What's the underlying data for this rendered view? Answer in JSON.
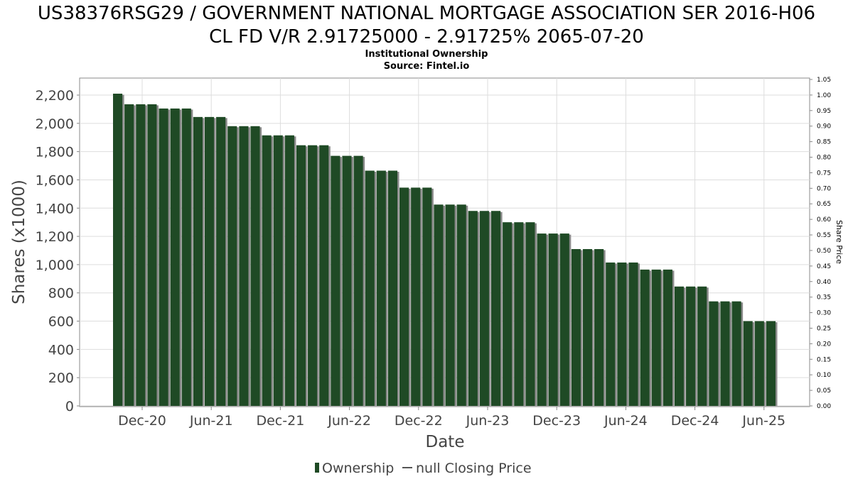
{
  "chart_data": {
    "type": "bar",
    "title_line1": "US38376RSG29 / GOVERNMENT NATIONAL MORTGAGE ASSOCIATION SER 2016-H06",
    "title_line2": "CL FD V/R 2.91725000 - 2.91725% 2065-07-20",
    "subtitle_line1": "Institutional Ownership",
    "subtitle_line2": "Source: Fintel.io",
    "xlabel": "Date",
    "ylabel": "Shares (x1000)",
    "y2label": "Share Price",
    "ylim": [
      0,
      2300
    ],
    "y2lim": [
      0,
      1.05
    ],
    "y_ticks": [
      0,
      200,
      400,
      600,
      800,
      1000,
      1200,
      1400,
      1600,
      1800,
      2000,
      2200
    ],
    "y_tick_labels": [
      "0",
      "200",
      "400",
      "600",
      "800",
      "1,000",
      "1,200",
      "1,400",
      "1,600",
      "1,800",
      "2,000",
      "2,200"
    ],
    "y2_ticks": [
      0.0,
      0.05,
      0.1,
      0.15,
      0.2,
      0.25,
      0.3,
      0.35,
      0.4,
      0.45,
      0.5,
      0.55,
      0.6,
      0.65,
      0.7,
      0.75,
      0.8,
      0.85,
      0.9,
      0.95,
      1.0,
      1.05
    ],
    "y2_tick_labels": [
      "0.00",
      "0.05",
      "0.10",
      "0.15",
      "0.20",
      "0.25",
      "0.30",
      "0.35",
      "0.40",
      "0.45",
      "0.50",
      "0.55",
      "0.60",
      "0.65",
      "0.70",
      "0.75",
      "0.80",
      "0.85",
      "0.90",
      "0.95",
      "1.00",
      "1.05"
    ],
    "x_tick_labels": [
      "Dec-20",
      "Jun-21",
      "Dec-21",
      "Jun-22",
      "Dec-22",
      "Jun-23",
      "Dec-23",
      "Jun-24",
      "Dec-24",
      "Jun-25"
    ],
    "grid": true,
    "legend_position": "bottom",
    "series": [
      {
        "name": "Ownership",
        "color": "#1f4a25",
        "values": [
          2210,
          2135,
          2135,
          2135,
          2105,
          2105,
          2105,
          2045,
          2045,
          2045,
          1980,
          1980,
          1980,
          1915,
          1915,
          1915,
          1845,
          1845,
          1845,
          1770,
          1770,
          1770,
          1665,
          1665,
          1665,
          1545,
          1545,
          1545,
          1425,
          1425,
          1425,
          1380,
          1380,
          1380,
          1300,
          1300,
          1300,
          1220,
          1220,
          1220,
          1110,
          1110,
          1110,
          1015,
          1015,
          1015,
          965,
          965,
          965,
          845,
          845,
          845,
          740,
          740,
          740,
          600,
          600,
          600
        ]
      },
      {
        "name": "null Closing Price",
        "color": "#555555",
        "values": []
      }
    ]
  }
}
